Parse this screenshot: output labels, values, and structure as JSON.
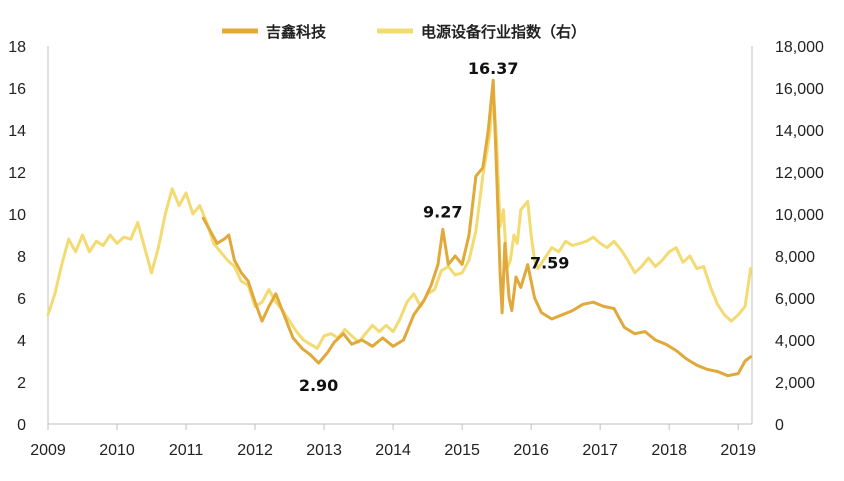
{
  "chart_data": {
    "type": "line",
    "title": "",
    "xlabel": "",
    "ylabel_left": "",
    "ylabel_right": "",
    "x_ticks": [
      "2009",
      "2010",
      "2011",
      "2012",
      "2013",
      "2014",
      "2015",
      "2016",
      "2017",
      "2018",
      "2019"
    ],
    "xlim": [
      2009.0,
      2019.2
    ],
    "ylim_left": [
      0,
      18
    ],
    "ylim_right": [
      0,
      18000
    ],
    "y_ticks_left": [
      "0",
      "2",
      "4",
      "6",
      "8",
      "10",
      "12",
      "14",
      "16",
      "18"
    ],
    "y_ticks_right": [
      "0",
      "2,000",
      "4,000",
      "6,000",
      "8,000",
      "10,000",
      "12,000",
      "14,000",
      "16,000",
      "18,000"
    ],
    "grid": false,
    "legend_position": "top-center",
    "series": [
      {
        "name": "吉鑫科技",
        "axis": "left",
        "color": "#E0A93A",
        "points": [
          [
            2011.25,
            9.8
          ],
          [
            2011.35,
            9.2
          ],
          [
            2011.45,
            8.6
          ],
          [
            2011.55,
            8.8
          ],
          [
            2011.62,
            9.0
          ],
          [
            2011.7,
            7.8
          ],
          [
            2011.8,
            7.2
          ],
          [
            2011.9,
            6.8
          ],
          [
            2012.0,
            5.8
          ],
          [
            2012.1,
            4.9
          ],
          [
            2012.2,
            5.6
          ],
          [
            2012.3,
            6.2
          ],
          [
            2012.42,
            5.2
          ],
          [
            2012.55,
            4.1
          ],
          [
            2012.68,
            3.6
          ],
          [
            2012.8,
            3.3
          ],
          [
            2012.92,
            2.9
          ],
          [
            2013.05,
            3.4
          ],
          [
            2013.15,
            3.9
          ],
          [
            2013.28,
            4.3
          ],
          [
            2013.4,
            3.8
          ],
          [
            2013.55,
            4.0
          ],
          [
            2013.7,
            3.7
          ],
          [
            2013.85,
            4.1
          ],
          [
            2014.0,
            3.7
          ],
          [
            2014.15,
            4.0
          ],
          [
            2014.3,
            5.2
          ],
          [
            2014.45,
            5.9
          ],
          [
            2014.55,
            6.6
          ],
          [
            2014.65,
            7.6
          ],
          [
            2014.72,
            9.27
          ],
          [
            2014.8,
            7.6
          ],
          [
            2014.9,
            8.0
          ],
          [
            2015.0,
            7.6
          ],
          [
            2015.1,
            9.0
          ],
          [
            2015.2,
            11.8
          ],
          [
            2015.3,
            12.2
          ],
          [
            2015.38,
            14.0
          ],
          [
            2015.45,
            16.37
          ],
          [
            2015.5,
            12.0
          ],
          [
            2015.55,
            7.2
          ],
          [
            2015.58,
            5.3
          ],
          [
            2015.62,
            8.6
          ],
          [
            2015.68,
            6.0
          ],
          [
            2015.72,
            5.4
          ],
          [
            2015.78,
            7.0
          ],
          [
            2015.85,
            6.5
          ],
          [
            2015.95,
            7.59
          ],
          [
            2016.05,
            6.0
          ],
          [
            2016.15,
            5.3
          ],
          [
            2016.3,
            5.0
          ],
          [
            2016.45,
            5.2
          ],
          [
            2016.6,
            5.4
          ],
          [
            2016.75,
            5.7
          ],
          [
            2016.9,
            5.8
          ],
          [
            2017.05,
            5.6
          ],
          [
            2017.2,
            5.5
          ],
          [
            2017.35,
            4.6
          ],
          [
            2017.5,
            4.3
          ],
          [
            2017.65,
            4.4
          ],
          [
            2017.8,
            4.0
          ],
          [
            2017.95,
            3.8
          ],
          [
            2018.1,
            3.5
          ],
          [
            2018.25,
            3.1
          ],
          [
            2018.4,
            2.8
          ],
          [
            2018.55,
            2.6
          ],
          [
            2018.7,
            2.5
          ],
          [
            2018.85,
            2.3
          ],
          [
            2019.0,
            2.4
          ],
          [
            2019.1,
            3.0
          ],
          [
            2019.18,
            3.2
          ]
        ]
      },
      {
        "name": "电源设备行业指数（右）",
        "axis": "right",
        "color": "#F3DB72",
        "points": [
          [
            2009.0,
            5200
          ],
          [
            2009.1,
            6200
          ],
          [
            2009.2,
            7600
          ],
          [
            2009.3,
            8800
          ],
          [
            2009.4,
            8200
          ],
          [
            2009.5,
            9000
          ],
          [
            2009.6,
            8200
          ],
          [
            2009.7,
            8700
          ],
          [
            2009.8,
            8500
          ],
          [
            2009.9,
            9000
          ],
          [
            2010.0,
            8600
          ],
          [
            2010.1,
            8900
          ],
          [
            2010.2,
            8800
          ],
          [
            2010.3,
            9600
          ],
          [
            2010.4,
            8400
          ],
          [
            2010.5,
            7200
          ],
          [
            2010.6,
            8400
          ],
          [
            2010.7,
            10000
          ],
          [
            2010.8,
            11200
          ],
          [
            2010.9,
            10400
          ],
          [
            2011.0,
            11000
          ],
          [
            2011.1,
            10000
          ],
          [
            2011.2,
            10400
          ],
          [
            2011.3,
            9600
          ],
          [
            2011.4,
            8600
          ],
          [
            2011.5,
            8200
          ],
          [
            2011.6,
            7800
          ],
          [
            2011.7,
            7500
          ],
          [
            2011.8,
            6800
          ],
          [
            2011.9,
            6600
          ],
          [
            2012.0,
            5600
          ],
          [
            2012.1,
            5800
          ],
          [
            2012.2,
            6400
          ],
          [
            2012.3,
            5800
          ],
          [
            2012.4,
            5400
          ],
          [
            2012.5,
            4900
          ],
          [
            2012.6,
            4400
          ],
          [
            2012.7,
            4000
          ],
          [
            2012.8,
            3800
          ],
          [
            2012.9,
            3600
          ],
          [
            2013.0,
            4200
          ],
          [
            2013.1,
            4300
          ],
          [
            2013.2,
            4100
          ],
          [
            2013.3,
            4500
          ],
          [
            2013.4,
            4200
          ],
          [
            2013.5,
            3900
          ],
          [
            2013.6,
            4300
          ],
          [
            2013.7,
            4700
          ],
          [
            2013.8,
            4400
          ],
          [
            2013.9,
            4700
          ],
          [
            2014.0,
            4400
          ],
          [
            2014.1,
            5000
          ],
          [
            2014.2,
            5800
          ],
          [
            2014.3,
            6200
          ],
          [
            2014.4,
            5600
          ],
          [
            2014.5,
            6200
          ],
          [
            2014.6,
            6400
          ],
          [
            2014.7,
            7300
          ],
          [
            2014.8,
            7500
          ],
          [
            2014.9,
            7100
          ],
          [
            2015.0,
            7200
          ],
          [
            2015.1,
            7800
          ],
          [
            2015.2,
            9200
          ],
          [
            2015.3,
            11800
          ],
          [
            2015.4,
            13800
          ],
          [
            2015.45,
            16000
          ],
          [
            2015.5,
            13500
          ],
          [
            2015.55,
            9400
          ],
          [
            2015.6,
            10200
          ],
          [
            2015.65,
            7400
          ],
          [
            2015.7,
            7800
          ],
          [
            2015.75,
            9000
          ],
          [
            2015.8,
            8600
          ],
          [
            2015.85,
            10200
          ],
          [
            2015.95,
            10600
          ],
          [
            2016.0,
            9000
          ],
          [
            2016.05,
            7800
          ],
          [
            2016.1,
            7400
          ],
          [
            2016.2,
            7900
          ],
          [
            2016.3,
            8400
          ],
          [
            2016.4,
            8200
          ],
          [
            2016.5,
            8700
          ],
          [
            2016.6,
            8500
          ],
          [
            2016.7,
            8600
          ],
          [
            2016.8,
            8700
          ],
          [
            2016.9,
            8900
          ],
          [
            2017.0,
            8600
          ],
          [
            2017.1,
            8400
          ],
          [
            2017.2,
            8700
          ],
          [
            2017.3,
            8300
          ],
          [
            2017.4,
            7800
          ],
          [
            2017.5,
            7200
          ],
          [
            2017.6,
            7500
          ],
          [
            2017.7,
            7900
          ],
          [
            2017.8,
            7500
          ],
          [
            2017.9,
            7800
          ],
          [
            2018.0,
            8200
          ],
          [
            2018.1,
            8400
          ],
          [
            2018.2,
            7700
          ],
          [
            2018.3,
            8000
          ],
          [
            2018.4,
            7400
          ],
          [
            2018.5,
            7500
          ],
          [
            2018.6,
            6500
          ],
          [
            2018.7,
            5700
          ],
          [
            2018.8,
            5200
          ],
          [
            2018.9,
            4900
          ],
          [
            2019.0,
            5200
          ],
          [
            2019.1,
            5600
          ],
          [
            2019.18,
            7400
          ]
        ]
      }
    ],
    "annotations": [
      {
        "text": "16.37",
        "x": 2015.45,
        "y": 16.37
      },
      {
        "text": "9.27",
        "x": 2014.72,
        "y": 9.27
      },
      {
        "text": "7.59",
        "x": 2015.95,
        "y": 7.59
      },
      {
        "text": "2.90",
        "x": 2012.92,
        "y": 2.9
      }
    ]
  }
}
